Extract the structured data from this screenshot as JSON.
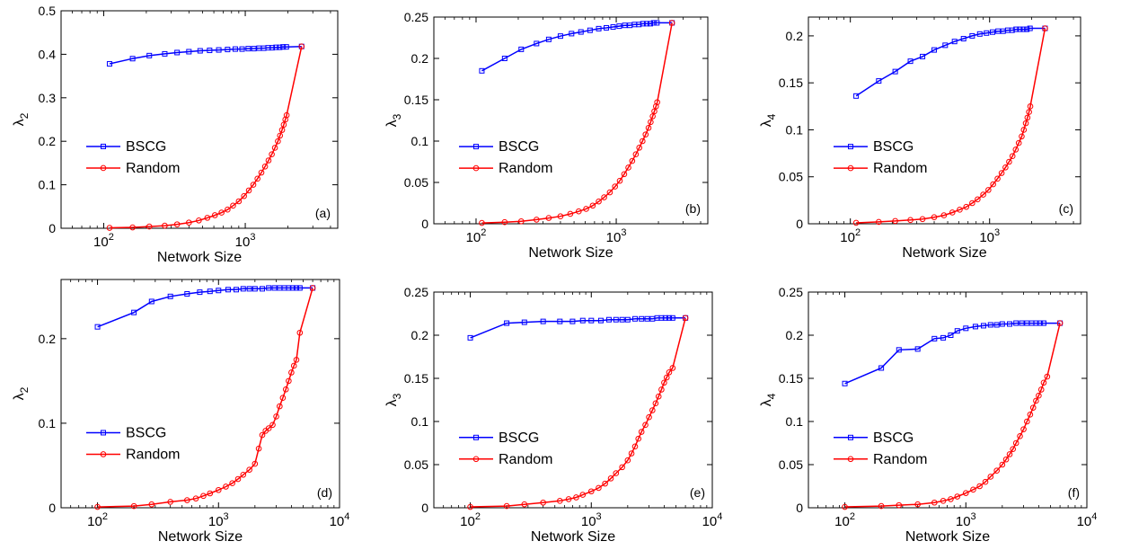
{
  "colors": {
    "bscg": "#0000ff",
    "random": "#ff0000",
    "axis": "#000000"
  },
  "chart_data": [
    {
      "type": "line",
      "panel_label": "(a)",
      "xlabel": "Network Size",
      "ylabel_base": "λ",
      "ylabel_sub": "2",
      "x_scale": "log",
      "xlim": [
        50,
        4500
      ],
      "ylim": [
        0,
        0.5
      ],
      "x_ticks": [
        {
          "value": 100,
          "base": "10",
          "exp": "2"
        },
        {
          "value": 1000,
          "base": "10",
          "exp": "3"
        }
      ],
      "y_ticks": [
        {
          "value": 0,
          "label": "0"
        },
        {
          "value": 0.1,
          "label": "0.1"
        },
        {
          "value": 0.2,
          "label": "0.2"
        },
        {
          "value": 0.3,
          "label": "0.3"
        },
        {
          "value": 0.4,
          "label": "0.4"
        },
        {
          "value": 0.5,
          "label": "0.5"
        }
      ],
      "legend": "center-left",
      "series": [
        {
          "name": "BSCG",
          "marker": "square",
          "x": [
            110,
            160,
            210,
            270,
            330,
            400,
            480,
            560,
            650,
            750,
            850,
            950,
            1050,
            1150,
            1250,
            1350,
            1450,
            1550,
            1650,
            1750,
            1850,
            1950,
            2500
          ],
          "y": [
            0.378,
            0.39,
            0.397,
            0.401,
            0.404,
            0.406,
            0.408,
            0.409,
            0.41,
            0.411,
            0.412,
            0.412,
            0.413,
            0.413,
            0.414,
            0.414,
            0.415,
            0.415,
            0.416,
            0.416,
            0.417,
            0.417,
            0.418
          ]
        },
        {
          "name": "Random",
          "marker": "circle",
          "x": [
            110,
            160,
            210,
            270,
            330,
            400,
            470,
            540,
            610,
            680,
            750,
            820,
            900,
            980,
            1060,
            1140,
            1220,
            1300,
            1380,
            1460,
            1540,
            1620,
            1700,
            1760,
            1820,
            1870,
            1920,
            1960,
            2500
          ],
          "y": [
            0.001,
            0.002,
            0.004,
            0.006,
            0.009,
            0.013,
            0.018,
            0.024,
            0.03,
            0.036,
            0.043,
            0.052,
            0.062,
            0.074,
            0.087,
            0.1,
            0.114,
            0.128,
            0.142,
            0.156,
            0.17,
            0.185,
            0.2,
            0.213,
            0.226,
            0.238,
            0.25,
            0.26,
            0.418
          ]
        }
      ]
    },
    {
      "type": "line",
      "panel_label": "(b)",
      "xlabel": "Network Size",
      "ylabel_base": "λ",
      "ylabel_sub": "3",
      "x_scale": "log",
      "xlim": [
        50,
        4500
      ],
      "ylim": [
        0,
        0.25
      ],
      "x_ticks": [
        {
          "value": 100,
          "base": "10",
          "exp": "2"
        },
        {
          "value": 1000,
          "base": "10",
          "exp": "3"
        }
      ],
      "y_ticks": [
        {
          "value": 0,
          "label": "0"
        },
        {
          "value": 0.05,
          "label": "0.05"
        },
        {
          "value": 0.1,
          "label": "0.1"
        },
        {
          "value": 0.15,
          "label": "0.15"
        },
        {
          "value": 0.2,
          "label": "0.2"
        },
        {
          "value": 0.25,
          "label": "0.25"
        }
      ],
      "legend": "center-left",
      "series": [
        {
          "name": "BSCG",
          "marker": "square",
          "x": [
            110,
            160,
            210,
            270,
            330,
            400,
            480,
            560,
            650,
            750,
            850,
            950,
            1050,
            1150,
            1250,
            1350,
            1450,
            1550,
            1650,
            1750,
            1850,
            1950,
            2500
          ],
          "y": [
            0.185,
            0.2,
            0.211,
            0.218,
            0.223,
            0.227,
            0.23,
            0.232,
            0.234,
            0.236,
            0.237,
            0.238,
            0.239,
            0.24,
            0.24,
            0.241,
            0.241,
            0.242,
            0.242,
            0.242,
            0.243,
            0.243,
            0.243
          ]
        },
        {
          "name": "Random",
          "marker": "circle",
          "x": [
            110,
            160,
            210,
            270,
            330,
            400,
            470,
            540,
            610,
            680,
            750,
            820,
            900,
            980,
            1060,
            1140,
            1220,
            1300,
            1380,
            1460,
            1540,
            1620,
            1700,
            1760,
            1820,
            1870,
            1920,
            1960,
            2500
          ],
          "y": [
            0.001,
            0.002,
            0.003,
            0.005,
            0.007,
            0.009,
            0.012,
            0.015,
            0.018,
            0.022,
            0.027,
            0.032,
            0.038,
            0.045,
            0.052,
            0.06,
            0.068,
            0.076,
            0.084,
            0.092,
            0.1,
            0.108,
            0.116,
            0.123,
            0.13,
            0.136,
            0.142,
            0.147,
            0.243
          ]
        }
      ]
    },
    {
      "type": "line",
      "panel_label": "(c)",
      "xlabel": "Network Size",
      "ylabel_base": "λ",
      "ylabel_sub": "4",
      "x_scale": "log",
      "xlim": [
        50,
        4500
      ],
      "ylim": [
        0,
        0.22
      ],
      "x_ticks": [
        {
          "value": 100,
          "base": "10",
          "exp": "2"
        },
        {
          "value": 1000,
          "base": "10",
          "exp": "3"
        }
      ],
      "y_ticks": [
        {
          "value": 0,
          "label": "0"
        },
        {
          "value": 0.05,
          "label": "0.05"
        },
        {
          "value": 0.1,
          "label": "0.1"
        },
        {
          "value": 0.15,
          "label": "0.15"
        },
        {
          "value": 0.2,
          "label": "0.2"
        }
      ],
      "legend": "center-left",
      "series": [
        {
          "name": "BSCG",
          "marker": "square",
          "x": [
            110,
            160,
            210,
            270,
            330,
            400,
            480,
            560,
            650,
            750,
            850,
            950,
            1050,
            1150,
            1250,
            1350,
            1450,
            1550,
            1650,
            1750,
            1850,
            1950,
            2500
          ],
          "y": [
            0.136,
            0.152,
            0.162,
            0.173,
            0.178,
            0.185,
            0.19,
            0.194,
            0.197,
            0.2,
            0.202,
            0.203,
            0.204,
            0.205,
            0.205,
            0.206,
            0.206,
            0.207,
            0.207,
            0.207,
            0.207,
            0.208,
            0.208
          ]
        },
        {
          "name": "Random",
          "marker": "circle",
          "x": [
            110,
            160,
            210,
            270,
            330,
            400,
            470,
            540,
            610,
            680,
            750,
            820,
            900,
            980,
            1060,
            1140,
            1220,
            1300,
            1380,
            1460,
            1540,
            1620,
            1700,
            1760,
            1820,
            1870,
            1920,
            1960,
            2500
          ],
          "y": [
            0.001,
            0.002,
            0.003,
            0.004,
            0.005,
            0.007,
            0.009,
            0.012,
            0.015,
            0.018,
            0.022,
            0.026,
            0.031,
            0.036,
            0.042,
            0.048,
            0.054,
            0.06,
            0.066,
            0.072,
            0.079,
            0.086,
            0.093,
            0.1,
            0.107,
            0.113,
            0.119,
            0.125,
            0.208
          ]
        }
      ]
    },
    {
      "type": "line",
      "panel_label": "(d)",
      "xlabel": "Network Size",
      "ylabel_base": "λ",
      "ylabel_sub": "2",
      "x_scale": "log",
      "xlim": [
        50,
        10000
      ],
      "ylim": [
        0,
        0.27
      ],
      "x_ticks": [
        {
          "value": 100,
          "base": "10",
          "exp": "2"
        },
        {
          "value": 1000,
          "base": "10",
          "exp": "3"
        },
        {
          "value": 10000,
          "base": "10",
          "exp": "4"
        }
      ],
      "y_ticks": [
        {
          "value": 0,
          "label": "0"
        },
        {
          "value": 0.1,
          "label": "0.1"
        },
        {
          "value": 0.2,
          "label": "0.2"
        }
      ],
      "legend": "lower-left",
      "series": [
        {
          "name": "BSCG",
          "marker": "square",
          "x": [
            100,
            200,
            280,
            400,
            550,
            700,
            850,
            1000,
            1200,
            1400,
            1600,
            1800,
            2000,
            2300,
            2600,
            2900,
            3200,
            3500,
            3800,
            4100,
            4400,
            4700,
            6000
          ],
          "y": [
            0.214,
            0.231,
            0.244,
            0.25,
            0.253,
            0.255,
            0.256,
            0.257,
            0.258,
            0.258,
            0.259,
            0.259,
            0.259,
            0.259,
            0.26,
            0.26,
            0.26,
            0.26,
            0.26,
            0.26,
            0.26,
            0.26,
            0.26
          ]
        },
        {
          "name": "Random",
          "marker": "circle",
          "x": [
            100,
            200,
            280,
            400,
            550,
            650,
            750,
            850,
            1000,
            1150,
            1300,
            1450,
            1600,
            1800,
            2000,
            2150,
            2300,
            2450,
            2600,
            2800,
            3000,
            3200,
            3400,
            3600,
            3800,
            4000,
            4200,
            4400,
            4700,
            6000
          ],
          "y": [
            0.001,
            0.002,
            0.004,
            0.007,
            0.009,
            0.011,
            0.014,
            0.017,
            0.021,
            0.025,
            0.029,
            0.034,
            0.039,
            0.045,
            0.052,
            0.07,
            0.086,
            0.091,
            0.094,
            0.098,
            0.108,
            0.12,
            0.13,
            0.14,
            0.15,
            0.16,
            0.168,
            0.175,
            0.207,
            0.26
          ]
        }
      ]
    },
    {
      "type": "line",
      "panel_label": "(e)",
      "xlabel": "Network Size",
      "ylabel_base": "λ",
      "ylabel_sub": "3",
      "x_scale": "log",
      "xlim": [
        50,
        10000
      ],
      "ylim": [
        0,
        0.25
      ],
      "x_ticks": [
        {
          "value": 100,
          "base": "10",
          "exp": "2"
        },
        {
          "value": 1000,
          "base": "10",
          "exp": "3"
        },
        {
          "value": 10000,
          "base": "10",
          "exp": "4"
        }
      ],
      "y_ticks": [
        {
          "value": 0,
          "label": "0"
        },
        {
          "value": 0.05,
          "label": "0.05"
        },
        {
          "value": 0.1,
          "label": "0.1"
        },
        {
          "value": 0.15,
          "label": "0.15"
        },
        {
          "value": 0.2,
          "label": "0.2"
        },
        {
          "value": 0.25,
          "label": "0.25"
        }
      ],
      "legend": "lower-left",
      "series": [
        {
          "name": "BSCG",
          "marker": "square",
          "x": [
            100,
            200,
            280,
            400,
            550,
            700,
            850,
            1000,
            1200,
            1400,
            1600,
            1800,
            2000,
            2300,
            2600,
            2900,
            3200,
            3500,
            3800,
            4100,
            4400,
            4700,
            6000
          ],
          "y": [
            0.197,
            0.214,
            0.215,
            0.216,
            0.216,
            0.216,
            0.217,
            0.217,
            0.217,
            0.218,
            0.218,
            0.218,
            0.218,
            0.219,
            0.219,
            0.219,
            0.219,
            0.22,
            0.22,
            0.22,
            0.22,
            0.22,
            0.22
          ]
        },
        {
          "name": "Random",
          "marker": "circle",
          "x": [
            100,
            200,
            280,
            400,
            550,
            650,
            750,
            850,
            1000,
            1150,
            1300,
            1450,
            1600,
            1800,
            2000,
            2150,
            2300,
            2450,
            2600,
            2800,
            3000,
            3200,
            3400,
            3600,
            3800,
            4000,
            4200,
            4400,
            4700,
            6000
          ],
          "y": [
            0.001,
            0.002,
            0.004,
            0.006,
            0.008,
            0.01,
            0.012,
            0.015,
            0.019,
            0.023,
            0.028,
            0.034,
            0.04,
            0.047,
            0.055,
            0.063,
            0.071,
            0.08,
            0.088,
            0.096,
            0.105,
            0.113,
            0.121,
            0.129,
            0.137,
            0.145,
            0.151,
            0.157,
            0.162,
            0.22
          ]
        }
      ]
    },
    {
      "type": "line",
      "panel_label": "(f)",
      "xlabel": "Network Size",
      "ylabel_base": "λ",
      "ylabel_sub": "4",
      "x_scale": "log",
      "xlim": [
        50,
        10000
      ],
      "ylim": [
        0,
        0.25
      ],
      "x_ticks": [
        {
          "value": 100,
          "base": "10",
          "exp": "2"
        },
        {
          "value": 1000,
          "base": "10",
          "exp": "3"
        },
        {
          "value": 10000,
          "base": "10",
          "exp": "4"
        }
      ],
      "y_ticks": [
        {
          "value": 0,
          "label": "0"
        },
        {
          "value": 0.05,
          "label": "0.05"
        },
        {
          "value": 0.1,
          "label": "0.1"
        },
        {
          "value": 0.15,
          "label": "0.15"
        },
        {
          "value": 0.2,
          "label": "0.2"
        },
        {
          "value": 0.25,
          "label": "0.25"
        }
      ],
      "legend": "lower-left",
      "series": [
        {
          "name": "BSCG",
          "marker": "square",
          "x": [
            100,
            200,
            280,
            400,
            550,
            650,
            750,
            850,
            1000,
            1200,
            1400,
            1600,
            1800,
            2000,
            2300,
            2600,
            2900,
            3200,
            3500,
            3800,
            4100,
            4400,
            6000
          ],
          "y": [
            0.144,
            0.162,
            0.183,
            0.184,
            0.196,
            0.197,
            0.2,
            0.205,
            0.208,
            0.21,
            0.211,
            0.212,
            0.212,
            0.213,
            0.213,
            0.214,
            0.214,
            0.214,
            0.214,
            0.214,
            0.214,
            0.214,
            0.214
          ]
        },
        {
          "name": "Random",
          "marker": "circle",
          "x": [
            100,
            200,
            280,
            400,
            550,
            650,
            750,
            850,
            1000,
            1150,
            1300,
            1450,
            1600,
            1800,
            2000,
            2150,
            2300,
            2450,
            2600,
            2800,
            3000,
            3200,
            3400,
            3600,
            3800,
            4000,
            4200,
            4400,
            4700,
            6000
          ],
          "y": [
            0.001,
            0.002,
            0.003,
            0.004,
            0.006,
            0.008,
            0.01,
            0.013,
            0.017,
            0.021,
            0.025,
            0.03,
            0.036,
            0.043,
            0.05,
            0.056,
            0.062,
            0.068,
            0.075,
            0.083,
            0.091,
            0.1,
            0.108,
            0.116,
            0.124,
            0.13,
            0.137,
            0.145,
            0.152,
            0.214
          ]
        }
      ]
    }
  ]
}
